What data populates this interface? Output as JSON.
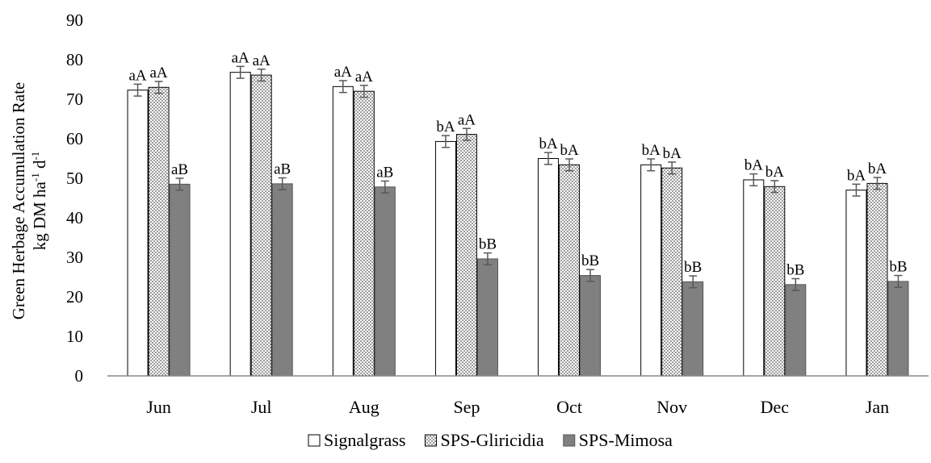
{
  "chart_data": {
    "type": "bar",
    "title": "",
    "xlabel": "",
    "ylabel_main": "Green Herbage Accumulation Rate",
    "ylabel_unit": {
      "base": "kg DM ha",
      "sup1": "-1",
      "mid": " d",
      "sup2": "-1"
    },
    "ylim": [
      0,
      90
    ],
    "yticks": [
      0,
      10,
      20,
      30,
      40,
      50,
      60,
      70,
      80,
      90
    ],
    "grid": false,
    "legend_position": "bottom",
    "categories": [
      "Jun",
      "Jul",
      "Aug",
      "Sep",
      "Oct",
      "Nov",
      "Dec",
      "Jan"
    ],
    "series": [
      {
        "name": "Signalgrass",
        "color": "#ffffff",
        "pattern": "none",
        "values": [
          72.3,
          76.8,
          73.2,
          59.3,
          55.0,
          53.4,
          49.6,
          47.0
        ],
        "errors": [
          1.5,
          1.5,
          1.5,
          1.5,
          1.5,
          1.5,
          1.5,
          1.5
        ],
        "labels": [
          "aA",
          "aA",
          "aA",
          "bA",
          "bA",
          "bA",
          "bA",
          "bA"
        ]
      },
      {
        "name": "SPS-Gliricidia",
        "color": "#ffffff",
        "pattern": "dots",
        "values": [
          73.0,
          76.1,
          72.0,
          61.1,
          53.4,
          52.6,
          47.9,
          48.7
        ],
        "errors": [
          1.5,
          1.5,
          1.5,
          1.5,
          1.5,
          1.5,
          1.5,
          1.5
        ],
        "labels": [
          "aA",
          "aA",
          "aA",
          "aA",
          "bA",
          "bA",
          "bA",
          "bA"
        ]
      },
      {
        "name": "SPS-Mimosa",
        "color": "#808080",
        "pattern": "none",
        "values": [
          48.5,
          48.6,
          47.8,
          29.6,
          25.4,
          23.8,
          23.1,
          23.9
        ],
        "errors": [
          1.5,
          1.5,
          1.5,
          1.5,
          1.5,
          1.5,
          1.5,
          1.5
        ],
        "labels": [
          "aB",
          "aB",
          "aB",
          "bB",
          "bB",
          "bB",
          "bB",
          "bB"
        ]
      }
    ]
  }
}
